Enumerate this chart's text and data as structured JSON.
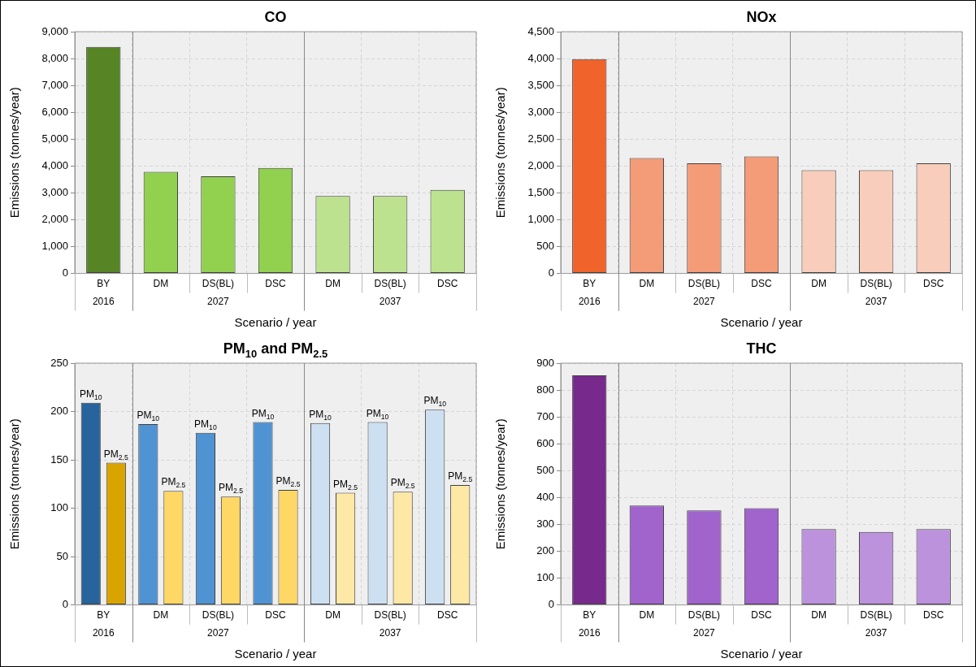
{
  "chart_data": [
    {
      "type": "bar",
      "title": "CO",
      "xlabel": "Scenario / year",
      "ylabel": "Emissions (tonnes/year)",
      "categories": [
        "BY",
        "DM",
        "DS(BL)",
        "DSC",
        "DM",
        "DS(BL)",
        "DSC"
      ],
      "values": [
        8430,
        3780,
        3620,
        3930,
        2880,
        2880,
        3110
      ],
      "colors": [
        "#578526",
        "#92d050",
        "#92d050",
        "#92d050",
        "#bde28f",
        "#bde28f",
        "#bde28f"
      ],
      "ylim": [
        0,
        9000
      ],
      "yticks": [
        0,
        {
          "value": 1000,
          "label": "1,000"
        },
        {
          "value": 2000,
          "label": "2,000"
        },
        {
          "value": 3000,
          "label": "3,000"
        },
        {
          "value": 4000,
          "label": "4,000"
        },
        {
          "value": 5000,
          "label": "5,000"
        },
        {
          "value": 6000,
          "label": "6,000"
        },
        {
          "value": 7000,
          "label": "7,000"
        },
        {
          "value": 8000,
          "label": "8,000"
        },
        {
          "value": 9000,
          "label": "9,000"
        }
      ],
      "grid": true,
      "annotations": [
        "2016",
        "2027",
        "2037"
      ]
    },
    {
      "type": "bar",
      "title": "NOx",
      "xlabel": "Scenario / year",
      "ylabel": "Emissions (tonnes/year)",
      "categories": [
        "BY",
        "DM",
        "DS(BL)",
        "DSC",
        "DM",
        "DS(BL)",
        "DSC"
      ],
      "values": [
        3990,
        2150,
        2050,
        2180,
        1920,
        1920,
        2050
      ],
      "colors": [
        "#f0632b",
        "#f49b78",
        "#f49b78",
        "#f49b78",
        "#f9cdbb",
        "#f9cdbb",
        "#f9cdbb"
      ],
      "ylim": [
        0,
        4500
      ],
      "yticks": [
        0,
        500,
        {
          "value": 1000,
          "label": "1,000"
        },
        {
          "value": 1500,
          "label": "1,500"
        },
        {
          "value": 2000,
          "label": "2,000"
        },
        {
          "value": 2500,
          "label": "2,500"
        },
        {
          "value": 3000,
          "label": "3,000"
        },
        {
          "value": 3500,
          "label": "3,500"
        },
        {
          "value": 4000,
          "label": "4,000"
        },
        {
          "value": 4500,
          "label": "4,500"
        }
      ],
      "grid": true,
      "annotations": [
        "2016",
        "2027",
        "2037"
      ]
    },
    {
      "type": "bar",
      "title": "PM$_{10}$ and PM$_{2.5}$",
      "xlabel": "Scenario / year",
      "ylabel": "Emissions (tonnes/year)",
      "categories": [
        "BY",
        "DM",
        "DS(BL)",
        "DSC",
        "DM",
        "DS(BL)",
        "DSC"
      ],
      "series": [
        {
          "name": "PM$_{10}$",
          "values": [
            209,
            187,
            178,
            189,
            188,
            189,
            202
          ],
          "colors": [
            "#27649b",
            "#4f93d2",
            "#4f93d2",
            "#4f93d2",
            "#cde0f2",
            "#cde0f2",
            "#cde0f2"
          ]
        },
        {
          "name": "PM$_{2.5}$",
          "values": [
            147,
            118,
            112,
            119,
            116,
            117,
            124
          ],
          "colors": [
            "#d9a300",
            "#fed764",
            "#fed764",
            "#fed764",
            "#fee8a6",
            "#fee8a6",
            "#fee8a6"
          ]
        }
      ],
      "ylim": [
        0,
        250
      ],
      "yticks": [
        0,
        50,
        100,
        150,
        200,
        250
      ],
      "grid": true,
      "annotations": [
        "2016",
        "2027",
        "2037"
      ]
    },
    {
      "type": "bar",
      "title": "THC",
      "xlabel": "Scenario / year",
      "ylabel": "Emissions (tonnes/year)",
      "categories": [
        "BY",
        "DM",
        "DS(BL)",
        "DSC",
        "DM",
        "DS(BL)",
        "DSC"
      ],
      "values": [
        855,
        370,
        352,
        360,
        282,
        272,
        282
      ],
      "colors": [
        "#772a8b",
        "#a064cc",
        "#a064cc",
        "#a064cc",
        "#bd92dc",
        "#bd92dc",
        "#bd92dc"
      ],
      "ylim": [
        0,
        900
      ],
      "yticks": [
        0,
        100,
        200,
        300,
        400,
        500,
        600,
        700,
        800,
        900
      ],
      "grid": true,
      "annotations": [
        "2016",
        "2027",
        "2037"
      ]
    }
  ]
}
